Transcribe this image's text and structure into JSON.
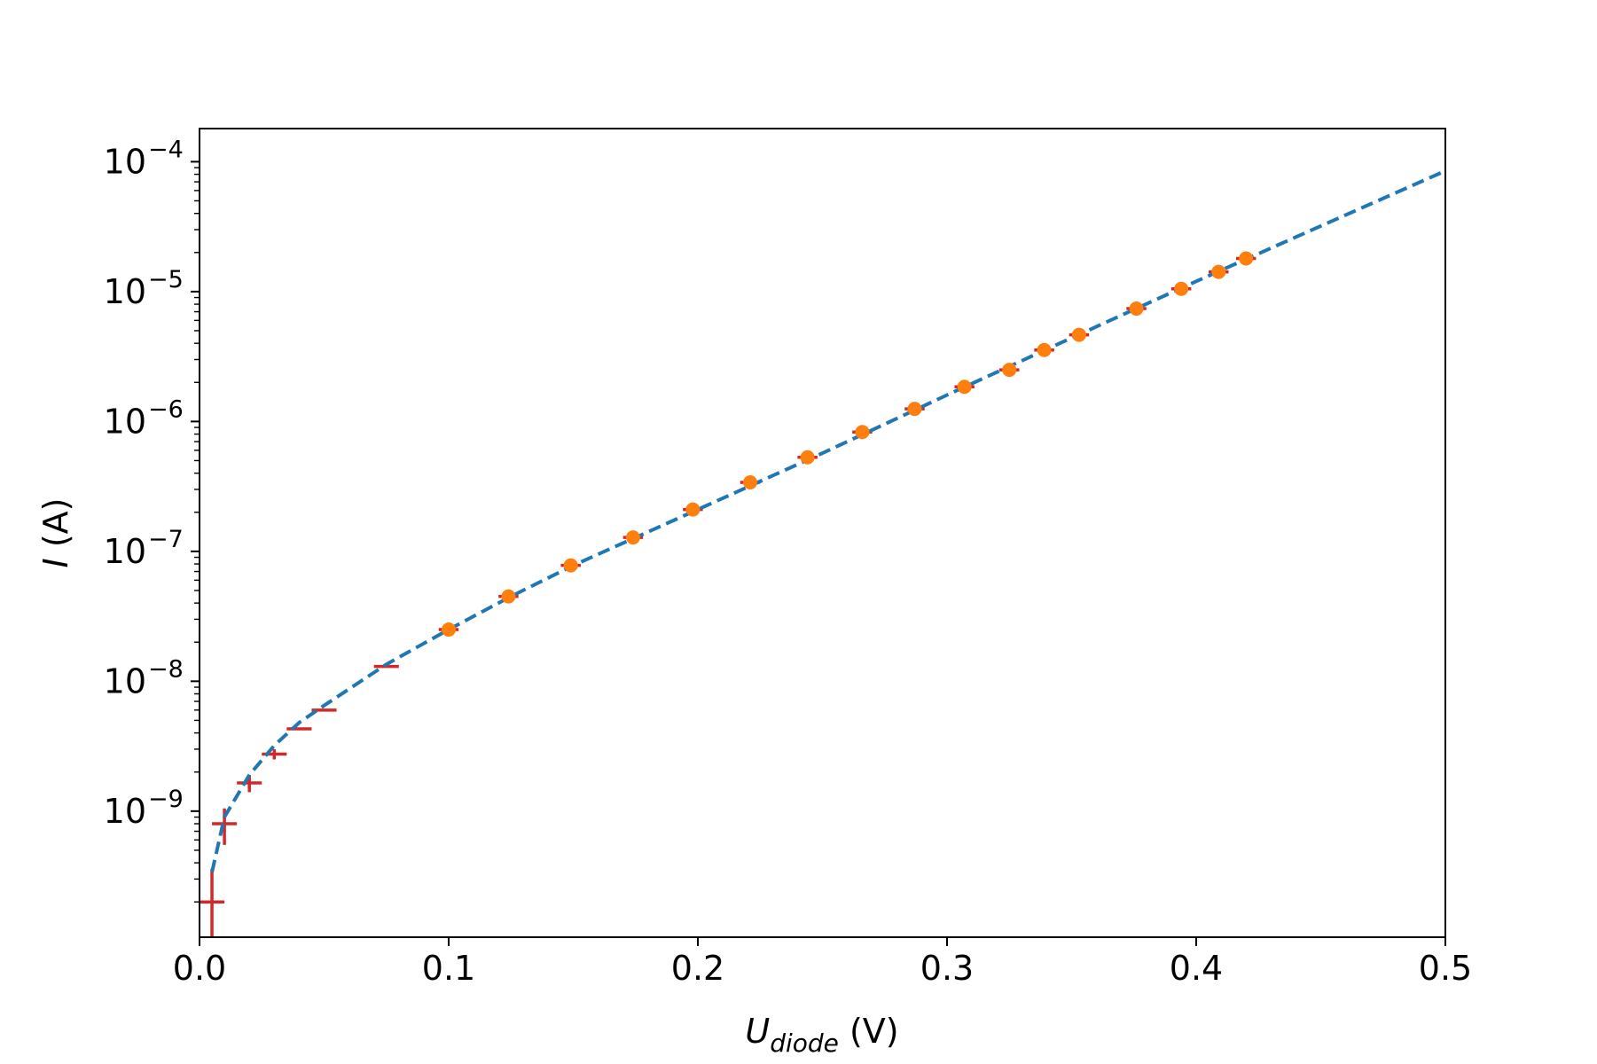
{
  "chart_data": {
    "type": "scatter",
    "title": "",
    "xlabel": {
      "main": "U",
      "sub": "diode",
      "unit": " (V)"
    },
    "ylabel": {
      "main": "I",
      "unit": " (A)"
    },
    "xlim": [
      0,
      0.5
    ],
    "ylim": [
      1.07e-10,
      0.00018
    ],
    "yscale": "log",
    "grid": false,
    "x_ticks": [
      "0.0",
      "0.1",
      "0.2",
      "0.3",
      "0.4",
      "0.5"
    ],
    "y_ticks": [
      {
        "base": "10",
        "exp": "−9",
        "value": 1e-09
      },
      {
        "base": "10",
        "exp": "−8",
        "value": 1e-08
      },
      {
        "base": "10",
        "exp": "−7",
        "value": 1e-07
      },
      {
        "base": "10",
        "exp": "−6",
        "value": 1e-06
      },
      {
        "base": "10",
        "exp": "−5",
        "value": 1e-05
      },
      {
        "base": "10",
        "exp": "−4",
        "value": 0.0001
      }
    ],
    "series": [
      {
        "kind": "errorbar",
        "color": "#d62728",
        "points": [
          {
            "x": 0.005,
            "y": 2e-10,
            "xerr": 0.005,
            "yerr_low": 1e-10,
            "yerr_high": 1.6e-10
          },
          {
            "x": 0.01,
            "y": 8e-10,
            "xerr": 0.005,
            "yerr_low": 2.5e-10,
            "yerr_high": 2.5e-10
          },
          {
            "x": 0.02,
            "y": 1.65e-09,
            "xerr": 0.005,
            "yerr_low": 2.5e-10,
            "yerr_high": 2.5e-10
          },
          {
            "x": 0.03,
            "y": 2.75e-09,
            "xerr": 0.005,
            "yerr_low": 2.5e-10,
            "yerr_high": 2.5e-10
          },
          {
            "x": 0.04,
            "y": 4.3e-09,
            "xerr": 0.005,
            "yerr_low": 0,
            "yerr_high": 0
          },
          {
            "x": 0.05,
            "y": 6e-09,
            "xerr": 0.005,
            "yerr_low": 0,
            "yerr_high": 0
          },
          {
            "x": 0.075,
            "y": 1.3e-08,
            "xerr": 0.005,
            "yerr_low": 0,
            "yerr_high": 0
          },
          {
            "x": 0.1,
            "y": 2.5e-08,
            "xerr": 0.004,
            "yerr_low": 0,
            "yerr_high": 0
          },
          {
            "x": 0.124,
            "y": 4.5e-08,
            "xerr": 0.004,
            "yerr_low": 0,
            "yerr_high": 0
          },
          {
            "x": 0.149,
            "y": 7.8e-08,
            "xerr": 0.004,
            "yerr_low": 0,
            "yerr_high": 0
          },
          {
            "x": 0.174,
            "y": 1.28e-07,
            "xerr": 0.004,
            "yerr_low": 0,
            "yerr_high": 0
          },
          {
            "x": 0.198,
            "y": 2.1e-07,
            "xerr": 0.004,
            "yerr_low": 0,
            "yerr_high": 0
          },
          {
            "x": 0.221,
            "y": 3.4e-07,
            "xerr": 0.004,
            "yerr_low": 0,
            "yerr_high": 0
          },
          {
            "x": 0.244,
            "y": 5.3e-07,
            "xerr": 0.004,
            "yerr_low": 0,
            "yerr_high": 0
          },
          {
            "x": 0.266,
            "y": 8.3e-07,
            "xerr": 0.004,
            "yerr_low": 0,
            "yerr_high": 0
          },
          {
            "x": 0.287,
            "y": 1.25e-06,
            "xerr": 0.004,
            "yerr_low": 0,
            "yerr_high": 0
          },
          {
            "x": 0.307,
            "y": 1.85e-06,
            "xerr": 0.004,
            "yerr_low": 0,
            "yerr_high": 0
          },
          {
            "x": 0.325,
            "y": 2.5e-06,
            "xerr": 0.004,
            "yerr_low": 0,
            "yerr_high": 0
          },
          {
            "x": 0.339,
            "y": 3.55e-06,
            "xerr": 0.004,
            "yerr_low": 0,
            "yerr_high": 0
          },
          {
            "x": 0.353,
            "y": 4.65e-06,
            "xerr": 0.004,
            "yerr_low": 0,
            "yerr_high": 0
          },
          {
            "x": 0.376,
            "y": 7.4e-06,
            "xerr": 0.004,
            "yerr_low": 0,
            "yerr_high": 0
          },
          {
            "x": 0.394,
            "y": 1.05e-05,
            "xerr": 0.004,
            "yerr_low": 0,
            "yerr_high": 0
          },
          {
            "x": 0.409,
            "y": 1.42e-05,
            "xerr": 0.004,
            "yerr_low": 0,
            "yerr_high": 0
          },
          {
            "x": 0.42,
            "y": 1.8e-05,
            "xerr": 0.004,
            "yerr_low": 0,
            "yerr_high": 0
          }
        ]
      },
      {
        "kind": "scatter",
        "color": "#ff7f0e",
        "points": [
          {
            "x": 0.1,
            "y": 2.5e-08
          },
          {
            "x": 0.124,
            "y": 4.5e-08
          },
          {
            "x": 0.149,
            "y": 7.8e-08
          },
          {
            "x": 0.174,
            "y": 1.28e-07
          },
          {
            "x": 0.198,
            "y": 2.1e-07
          },
          {
            "x": 0.221,
            "y": 3.4e-07
          },
          {
            "x": 0.244,
            "y": 5.3e-07
          },
          {
            "x": 0.266,
            "y": 8.3e-07
          },
          {
            "x": 0.287,
            "y": 1.25e-06
          },
          {
            "x": 0.307,
            "y": 1.85e-06
          },
          {
            "x": 0.325,
            "y": 2.5e-06
          },
          {
            "x": 0.339,
            "y": 3.55e-06
          },
          {
            "x": 0.353,
            "y": 4.65e-06
          },
          {
            "x": 0.376,
            "y": 7.4e-06
          },
          {
            "x": 0.394,
            "y": 1.05e-05
          },
          {
            "x": 0.409,
            "y": 1.42e-05
          },
          {
            "x": 0.42,
            "y": 1.8e-05
          }
        ]
      },
      {
        "kind": "line",
        "style": "dashed",
        "color": "#1f77b4",
        "points": [
          {
            "x": 0.005,
            "y": 3.4e-10
          },
          {
            "x": 0.01,
            "y": 9e-10
          },
          {
            "x": 0.02,
            "y": 1.9e-09
          },
          {
            "x": 0.03,
            "y": 3.2e-09
          },
          {
            "x": 0.04,
            "y": 4.8e-09
          },
          {
            "x": 0.05,
            "y": 6.5e-09
          },
          {
            "x": 0.075,
            "y": 1.35e-08
          },
          {
            "x": 0.1,
            "y": 2.5e-08
          },
          {
            "x": 0.125,
            "y": 4.5e-08
          },
          {
            "x": 0.15,
            "y": 7.8e-08
          },
          {
            "x": 0.2,
            "y": 2.1e-07
          },
          {
            "x": 0.25,
            "y": 5.7e-07
          },
          {
            "x": 0.3,
            "y": 1.6e-06
          },
          {
            "x": 0.35,
            "y": 4.4e-06
          },
          {
            "x": 0.4,
            "y": 1.2e-05
          },
          {
            "x": 0.45,
            "y": 3.2e-05
          },
          {
            "x": 0.5,
            "y": 8.5e-05
          }
        ]
      }
    ]
  }
}
